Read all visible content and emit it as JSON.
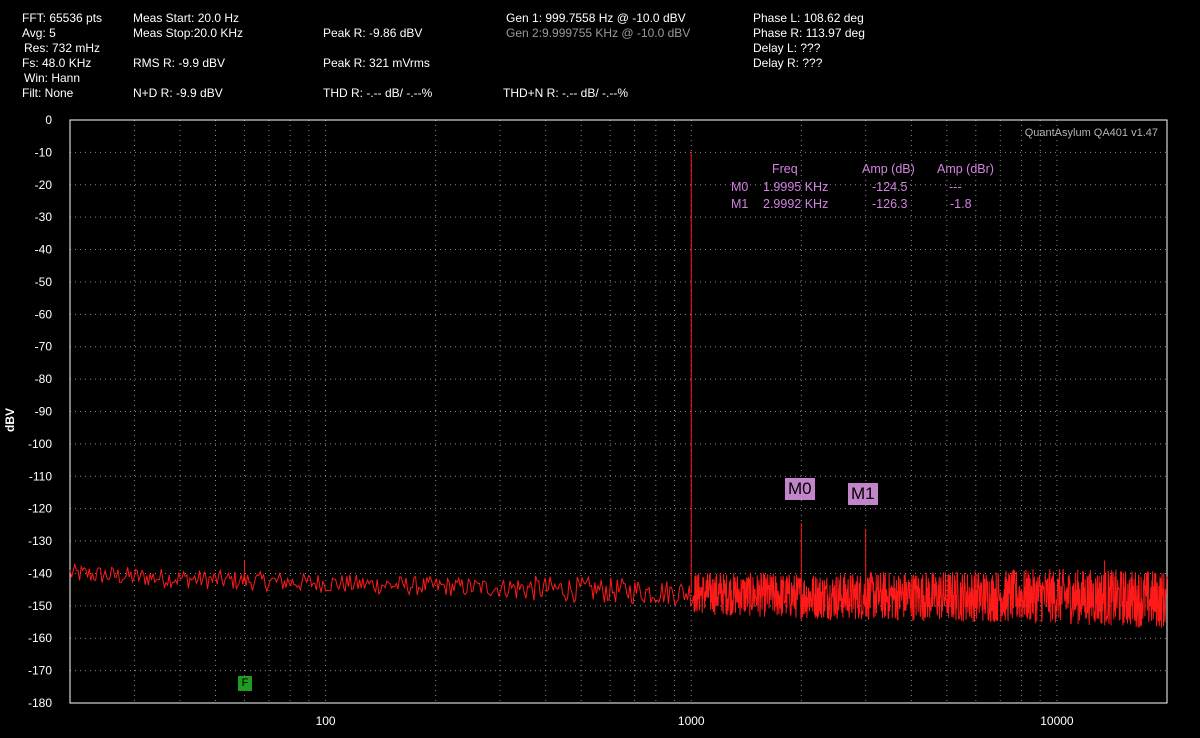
{
  "header": {
    "fft": "FFT: 65536 pts",
    "avg": "Avg: 5",
    "res": "Res: 732 mHz",
    "fs": "Fs: 48.0 KHz",
    "win": "Win: Hann",
    "filt": "Filt: None",
    "meas_start": "Meas Start: 20.0 Hz",
    "meas_stop": "Meas Stop:20.0 KHz",
    "rms": "RMS R: -9.9 dBV",
    "nd": "N+D R: -9.9 dBV",
    "peak_dbv": "Peak R: -9.86 dBV",
    "peak_mv": "Peak R: 321 mVrms",
    "thd": "THD R: -.-- dB/ -.--%",
    "gen1": "Gen 1: 999.7558 Hz @ -10.0  dBV",
    "gen2": "Gen 2:9.999755 KHz @ -10.0  dBV",
    "thdn": "THD+N R: -.-- dB/ -.--%",
    "phase_l": "Phase L: 108.62 deg",
    "phase_r": "Phase R: 113.97 deg",
    "delay_l": "Delay L: ???",
    "delay_r": "Delay R: ???"
  },
  "watermark": "QuantAsylum QA401 v1.47",
  "markers": {
    "head_freq": "Freq",
    "head_amp_db": "Amp (dB)",
    "head_amp_dbr": "Amp (dBr)",
    "rows": [
      {
        "name": "M0",
        "freq": "1.9995 KHz",
        "amp_db": "-124.5",
        "amp_dbr": "---"
      },
      {
        "name": "M1",
        "freq": "2.9992 KHz",
        "amp_db": "-126.3",
        "amp_dbr": "-1.8"
      }
    ]
  },
  "f_marker": "F",
  "colors": {
    "trace": "#ff1a1a",
    "marker_text": "#d183e0",
    "marker_tag": "#c285c9",
    "grid": "#8a8a8a",
    "f_marker": "#1f9b21"
  },
  "chart_data": {
    "type": "line",
    "title": "",
    "xlabel": "",
    "ylabel": "dBV",
    "x_scale": "log",
    "xlim": [
      20,
      20000
    ],
    "ylim": [
      -180,
      0
    ],
    "grid": true,
    "x_ticks": [
      "100",
      "1000",
      "10000"
    ],
    "y_ticks": [
      "0",
      "-10",
      "-20",
      "-30",
      "-40",
      "-50",
      "-60",
      "-70",
      "-80",
      "-90",
      "-100",
      "-110",
      "-120",
      "-130",
      "-140",
      "-150",
      "-160",
      "-170",
      "-180"
    ],
    "noise_floor_dbv": [
      [
        20,
        -140
      ],
      [
        30,
        -141
      ],
      [
        50,
        -142
      ],
      [
        100,
        -143
      ],
      [
        200,
        -144
      ],
      [
        500,
        -145
      ],
      [
        1000,
        -146
      ],
      [
        2000,
        -147
      ],
      [
        5000,
        -147
      ],
      [
        10000,
        -147
      ],
      [
        20000,
        -148
      ]
    ],
    "peaks": [
      {
        "x": 999.7558,
        "y": -9.86
      },
      {
        "x": 1999.5,
        "y": -124.5
      },
      {
        "x": 2999.2,
        "y": -126.3
      },
      {
        "x": 60,
        "y": -136
      },
      {
        "x": 1200,
        "y": -140
      },
      {
        "x": 13500,
        "y": -136
      }
    ]
  }
}
